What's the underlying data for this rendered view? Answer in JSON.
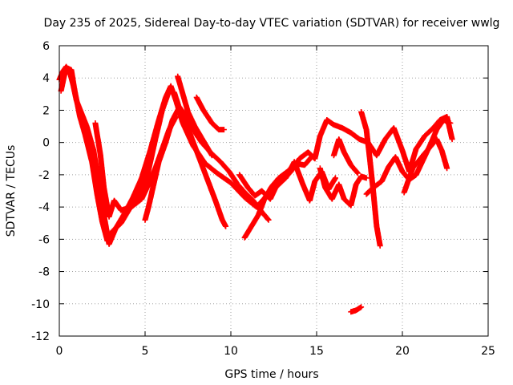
{
  "chart_data": {
    "type": "scatter",
    "title": "Day 235 of 2025, Sidereal Day-to-day VTEC variation (SDTVAR) for receiver wwlg",
    "xlabel": "GPS time / hours",
    "ylabel": "SDTVAR / TECUs",
    "xlim": [
      0,
      25
    ],
    "ylim": [
      -12,
      6
    ],
    "xticks": [
      0,
      5,
      10,
      15,
      20,
      25
    ],
    "yticks": [
      -12,
      -10,
      -8,
      -6,
      -4,
      -2,
      0,
      2,
      4,
      6
    ],
    "grid": true,
    "marker": "+",
    "series": [
      {
        "name": "SDTVAR",
        "color": "#ff0000",
        "segments": [
          [
            [
              0.0,
              3.9
            ],
            [
              0.2,
              4.4
            ],
            [
              0.4,
              4.7
            ],
            [
              0.6,
              4.4
            ],
            [
              0.8,
              3.6
            ],
            [
              1.0,
              2.6
            ],
            [
              1.3,
              1.8
            ],
            [
              1.6,
              1.0
            ],
            [
              2.0,
              -0.5
            ],
            [
              2.3,
              -2.5
            ],
            [
              2.6,
              -4.5
            ],
            [
              2.9,
              -6.3
            ],
            [
              3.3,
              -5.3
            ],
            [
              3.8,
              -4.4
            ],
            [
              4.3,
              -3.4
            ],
            [
              4.8,
              -2.2
            ],
            [
              5.3,
              -0.5
            ],
            [
              5.8,
              1.4
            ],
            [
              6.2,
              2.8
            ],
            [
              6.5,
              3.5
            ],
            [
              6.8,
              2.6
            ],
            [
              7.2,
              1.2
            ],
            [
              7.8,
              -0.2
            ],
            [
              8.5,
              -1.3
            ],
            [
              9.2,
              -1.9
            ],
            [
              10.0,
              -2.5
            ],
            [
              10.8,
              -3.4
            ],
            [
              11.5,
              -4.0
            ],
            [
              12.0,
              -3.4
            ],
            [
              12.5,
              -2.9
            ],
            [
              13.0,
              -2.4
            ],
            [
              13.5,
              -1.8
            ],
            [
              14.0,
              -1.0
            ],
            [
              14.5,
              -0.6
            ],
            [
              14.9,
              -1.0
            ],
            [
              15.2,
              0.4
            ],
            [
              15.6,
              1.4
            ],
            [
              16.0,
              1.1
            ],
            [
              16.5,
              0.9
            ],
            [
              17.0,
              0.6
            ],
            [
              17.5,
              0.2
            ],
            [
              18.0,
              0.0
            ],
            [
              18.5,
              -0.8
            ],
            [
              19.0,
              0.2
            ],
            [
              19.5,
              0.9
            ],
            [
              20.0,
              -0.5
            ],
            [
              20.4,
              -1.8
            ],
            [
              20.8,
              -0.4
            ],
            [
              21.3,
              0.4
            ],
            [
              21.8,
              0.9
            ],
            [
              22.2,
              1.4
            ],
            [
              22.6,
              1.6
            ],
            [
              22.9,
              0.2
            ]
          ],
          [
            [
              0.1,
              3.2
            ],
            [
              0.3,
              4.2
            ],
            [
              0.5,
              4.6
            ],
            [
              0.7,
              4.5
            ],
            [
              0.9,
              3.2
            ],
            [
              1.2,
              1.6
            ],
            [
              1.5,
              0.5
            ],
            [
              1.9,
              -1.2
            ],
            [
              2.2,
              -3.2
            ],
            [
              2.5,
              -4.9
            ],
            [
              2.8,
              -6.1
            ],
            [
              3.1,
              -5.5
            ],
            [
              3.6,
              -5.0
            ],
            [
              4.1,
              -4.1
            ],
            [
              4.6,
              -3.4
            ],
            [
              5.1,
              -2.2
            ],
            [
              5.6,
              0.2
            ],
            [
              6.0,
              2.0
            ],
            [
              6.4,
              3.2
            ],
            [
              6.7,
              3.1
            ],
            [
              7.1,
              1.8
            ],
            [
              7.6,
              0.6
            ],
            [
              8.1,
              -0.8
            ],
            [
              8.6,
              -2.2
            ],
            [
              9.1,
              -3.6
            ],
            [
              9.5,
              -4.8
            ],
            [
              9.7,
              -5.2
            ]
          ],
          [
            [
              2.1,
              1.2
            ],
            [
              2.4,
              -0.8
            ],
            [
              2.6,
              -2.8
            ],
            [
              2.9,
              -4.6
            ],
            [
              3.2,
              -3.6
            ],
            [
              3.6,
              -4.2
            ],
            [
              4.2,
              -4.0
            ],
            [
              4.8,
              -3.5
            ],
            [
              5.2,
              -2.6
            ],
            [
              5.6,
              -1.6
            ],
            [
              6.0,
              -0.4
            ],
            [
              6.4,
              0.8
            ],
            [
              6.8,
              1.6
            ]
          ],
          [
            [
              5.0,
              -4.8
            ],
            [
              5.2,
              -4.0
            ],
            [
              5.5,
              -2.6
            ],
            [
              5.8,
              -1.2
            ],
            [
              6.2,
              0.0
            ],
            [
              6.6,
              1.4
            ],
            [
              7.0,
              2.2
            ],
            [
              7.4,
              1.6
            ],
            [
              7.8,
              0.8
            ],
            [
              8.3,
              0.0
            ],
            [
              8.8,
              -0.6
            ],
            [
              9.4,
              -1.2
            ],
            [
              9.9,
              -1.8
            ],
            [
              10.4,
              -2.6
            ],
            [
              10.9,
              -3.2
            ],
            [
              11.3,
              -3.6
            ],
            [
              11.8,
              -4.3
            ],
            [
              12.2,
              -4.8
            ]
          ],
          [
            [
              6.9,
              4.1
            ],
            [
              7.2,
              3.0
            ],
            [
              7.5,
              1.9
            ],
            [
              7.9,
              1.0
            ],
            [
              8.4,
              0.1
            ],
            [
              8.9,
              -0.8
            ]
          ],
          [
            [
              8.0,
              2.8
            ],
            [
              8.4,
              2.0
            ],
            [
              8.9,
              1.2
            ],
            [
              9.3,
              0.8
            ],
            [
              9.6,
              0.8
            ]
          ],
          [
            [
              10.8,
              -5.9
            ],
            [
              11.2,
              -5.2
            ],
            [
              11.6,
              -4.5
            ],
            [
              12.0,
              -3.4
            ],
            [
              12.4,
              -2.7
            ],
            [
              12.8,
              -2.2
            ],
            [
              13.3,
              -1.8
            ],
            [
              13.8,
              -1.3
            ],
            [
              14.3,
              -1.4
            ],
            [
              14.7,
              -0.9
            ]
          ],
          [
            [
              10.5,
              -2.0
            ],
            [
              11.0,
              -2.8
            ],
            [
              11.4,
              -3.3
            ],
            [
              11.8,
              -3.0
            ],
            [
              12.3,
              -3.5
            ],
            [
              12.7,
              -2.6
            ],
            [
              13.2,
              -2.2
            ],
            [
              13.7,
              -1.2
            ],
            [
              14.2,
              -2.6
            ],
            [
              14.6,
              -3.6
            ],
            [
              14.9,
              -2.4
            ],
            [
              15.3,
              -1.8
            ],
            [
              15.7,
              -2.9
            ],
            [
              16.1,
              -2.2
            ]
          ],
          [
            [
              15.2,
              -1.6
            ],
            [
              15.5,
              -2.8
            ],
            [
              15.9,
              -3.5
            ],
            [
              16.3,
              -2.6
            ],
            [
              16.6,
              -3.5
            ],
            [
              17.0,
              -3.9
            ],
            [
              17.3,
              -2.6
            ],
            [
              17.6,
              -2.1
            ],
            [
              17.9,
              -2.2
            ]
          ],
          [
            [
              16.0,
              -0.8
            ],
            [
              16.3,
              0.2
            ],
            [
              16.6,
              -0.6
            ],
            [
              17.0,
              -1.4
            ],
            [
              17.4,
              -1.9
            ]
          ],
          [
            [
              17.6,
              1.9
            ],
            [
              17.9,
              0.8
            ],
            [
              18.1,
              -1.0
            ],
            [
              18.3,
              -3.0
            ],
            [
              18.5,
              -5.2
            ],
            [
              18.7,
              -6.4
            ]
          ],
          [
            [
              17.9,
              -3.2
            ],
            [
              18.3,
              -2.8
            ],
            [
              18.8,
              -2.4
            ],
            [
              19.2,
              -1.5
            ],
            [
              19.6,
              -0.9
            ],
            [
              20.0,
              -1.8
            ],
            [
              20.4,
              -2.3
            ],
            [
              20.8,
              -2.0
            ],
            [
              21.2,
              -1.1
            ],
            [
              21.6,
              -0.2
            ],
            [
              22.0,
              0.8
            ],
            [
              22.4,
              1.4
            ],
            [
              22.8,
              1.2
            ]
          ],
          [
            [
              20.1,
              -3.1
            ],
            [
              20.6,
              -1.6
            ],
            [
              21.2,
              -0.8
            ],
            [
              21.6,
              -0.3
            ],
            [
              22.0,
              0.2
            ],
            [
              22.3,
              -0.5
            ],
            [
              22.6,
              -1.6
            ]
          ],
          [
            [
              17.0,
              -10.5
            ],
            [
              17.3,
              -10.4
            ],
            [
              17.6,
              -10.2
            ]
          ]
        ]
      }
    ]
  }
}
